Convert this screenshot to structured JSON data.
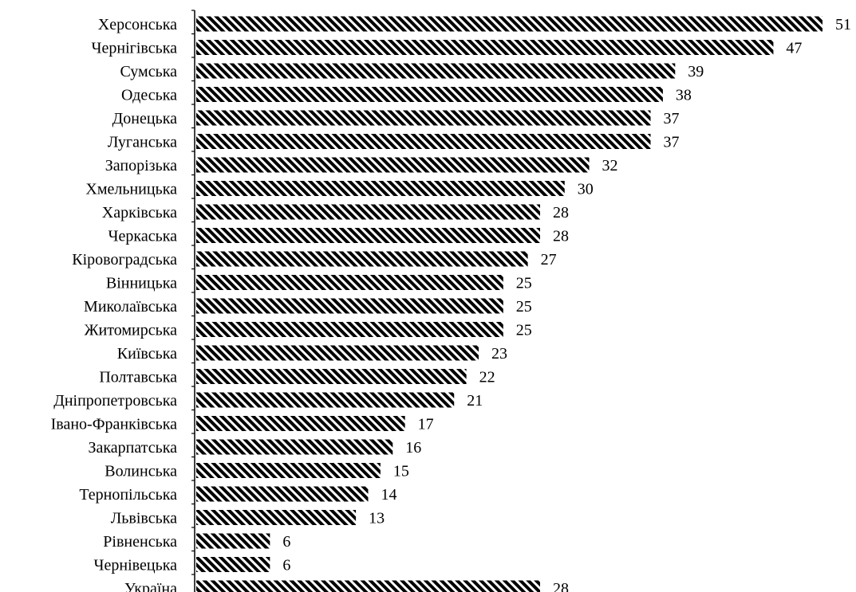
{
  "chart_data": {
    "type": "bar",
    "orientation": "horizontal",
    "categories": [
      "Херсонська",
      "Чернігівська",
      "Сумська",
      "Одеська",
      "Донецька",
      "Луганська",
      "Запорізька",
      "Хмельницька",
      "Харківська",
      "Черкаська",
      "Кіровоградська",
      "Вінницька",
      "Миколаївська",
      "Житомирська",
      "Київська",
      "Полтавська",
      "Дніпропетровська",
      "Івано-Франківська",
      "Закарпатська",
      "Волинська",
      "Тернопільська",
      "Львівська",
      "Рівненська",
      "Чернівецька",
      "Україна"
    ],
    "values": [
      51,
      47,
      39,
      38,
      37,
      37,
      32,
      30,
      28,
      28,
      27,
      25,
      25,
      25,
      23,
      22,
      21,
      17,
      16,
      15,
      14,
      13,
      6,
      6,
      28
    ],
    "bar_fill": "diagonal-hatch",
    "colors": {
      "hatch": "#000000",
      "background": "#ffffff",
      "axis": "#000000",
      "text": "#000000"
    },
    "xlim": [
      0,
      51
    ],
    "grid": false,
    "legend": "none"
  }
}
